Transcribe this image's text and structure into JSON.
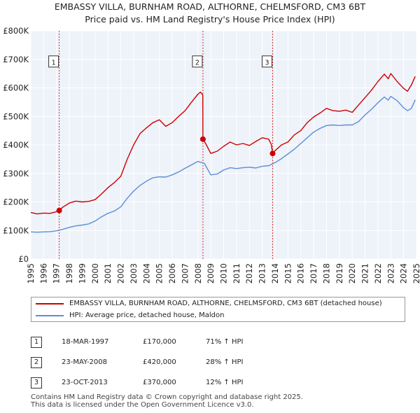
{
  "chart_data": {
    "type": "line",
    "title": "EMBASSY VILLA, BURNHAM ROAD, ALTHORNE, CHELMSFORD, CM3 6BT",
    "subtitle": "Price paid vs. HM Land Registry's House Price Index (HPI)",
    "xlabel": "",
    "ylabel": "",
    "xlim": [
      1995,
      2025
    ],
    "ylim": [
      0,
      800000
    ],
    "x_ticks": [
      1995,
      1996,
      1997,
      1998,
      1999,
      2000,
      2001,
      2002,
      2003,
      2004,
      2005,
      2006,
      2007,
      2008,
      2009,
      2010,
      2011,
      2012,
      2013,
      2014,
      2015,
      2016,
      2017,
      2018,
      2019,
      2020,
      2021,
      2022,
      2023,
      2024,
      2025
    ],
    "y_ticks": [
      {
        "value": 0,
        "label": "£0"
      },
      {
        "value": 100000,
        "label": "£100K"
      },
      {
        "value": 200000,
        "label": "£200K"
      },
      {
        "value": 300000,
        "label": "£300K"
      },
      {
        "value": 400000,
        "label": "£400K"
      },
      {
        "value": 500000,
        "label": "£500K"
      },
      {
        "value": 600000,
        "label": "£600K"
      },
      {
        "value": 700000,
        "label": "£700K"
      },
      {
        "value": 800000,
        "label": "£800K"
      }
    ],
    "grid": true,
    "series": [
      {
        "name": "EMBASSY VILLA, BURNHAM ROAD, ALTHORNE, CHELMSFORD, CM3 6BT (detached house)",
        "color": "#cc0000",
        "points": [
          [
            1995.0,
            163000
          ],
          [
            1995.5,
            158000
          ],
          [
            1996.0,
            161000
          ],
          [
            1996.5,
            160000
          ],
          [
            1997.0,
            166000
          ],
          [
            1997.21,
            170000
          ],
          [
            1997.5,
            182000
          ],
          [
            1998.0,
            196000
          ],
          [
            1998.5,
            203000
          ],
          [
            1999.0,
            200000
          ],
          [
            1999.5,
            202000
          ],
          [
            2000.0,
            208000
          ],
          [
            2000.5,
            228000
          ],
          [
            2001.0,
            250000
          ],
          [
            2001.5,
            268000
          ],
          [
            2002.0,
            290000
          ],
          [
            2002.5,
            350000
          ],
          [
            2003.0,
            400000
          ],
          [
            2003.5,
            440000
          ],
          [
            2004.0,
            460000
          ],
          [
            2004.5,
            478000
          ],
          [
            2005.0,
            488000
          ],
          [
            2005.5,
            465000
          ],
          [
            2006.0,
            478000
          ],
          [
            2006.5,
            500000
          ],
          [
            2007.0,
            520000
          ],
          [
            2007.5,
            550000
          ],
          [
            2008.0,
            578000
          ],
          [
            2008.2,
            585000
          ],
          [
            2008.38,
            575000
          ],
          [
            2008.39,
            420000
          ],
          [
            2008.6,
            405000
          ],
          [
            2009.0,
            370000
          ],
          [
            2009.5,
            378000
          ],
          [
            2010.0,
            395000
          ],
          [
            2010.5,
            410000
          ],
          [
            2011.0,
            400000
          ],
          [
            2011.5,
            405000
          ],
          [
            2012.0,
            398000
          ],
          [
            2012.5,
            412000
          ],
          [
            2013.0,
            425000
          ],
          [
            2013.5,
            420000
          ],
          [
            2013.7,
            402000
          ],
          [
            2013.81,
            370000
          ],
          [
            2014.0,
            380000
          ],
          [
            2014.5,
            400000
          ],
          [
            2015.0,
            410000
          ],
          [
            2015.5,
            435000
          ],
          [
            2016.0,
            450000
          ],
          [
            2016.5,
            478000
          ],
          [
            2017.0,
            498000
          ],
          [
            2017.5,
            512000
          ],
          [
            2018.0,
            528000
          ],
          [
            2018.5,
            520000
          ],
          [
            2019.0,
            518000
          ],
          [
            2019.5,
            522000
          ],
          [
            2020.0,
            514000
          ],
          [
            2020.5,
            540000
          ],
          [
            2021.0,
            566000
          ],
          [
            2021.5,
            592000
          ],
          [
            2022.0,
            622000
          ],
          [
            2022.5,
            648000
          ],
          [
            2022.8,
            632000
          ],
          [
            2023.0,
            650000
          ],
          [
            2023.5,
            622000
          ],
          [
            2024.0,
            598000
          ],
          [
            2024.3,
            588000
          ],
          [
            2024.6,
            610000
          ],
          [
            2024.9,
            640000
          ]
        ]
      },
      {
        "name": "HPI: Average price, detached house, Maldon",
        "color": "#5b8ed6",
        "points": [
          [
            1995.0,
            95000
          ],
          [
            1995.5,
            94000
          ],
          [
            1996.0,
            95000
          ],
          [
            1996.5,
            96000
          ],
          [
            1997.0,
            99000
          ],
          [
            1997.5,
            104000
          ],
          [
            1998.0,
            111000
          ],
          [
            1998.5,
            116000
          ],
          [
            1999.0,
            119000
          ],
          [
            1999.5,
            123000
          ],
          [
            2000.0,
            133000
          ],
          [
            2000.5,
            148000
          ],
          [
            2001.0,
            160000
          ],
          [
            2001.5,
            168000
          ],
          [
            2002.0,
            183000
          ],
          [
            2002.5,
            213000
          ],
          [
            2003.0,
            238000
          ],
          [
            2003.5,
            258000
          ],
          [
            2004.0,
            273000
          ],
          [
            2004.5,
            285000
          ],
          [
            2005.0,
            288000
          ],
          [
            2005.5,
            287000
          ],
          [
            2006.0,
            295000
          ],
          [
            2006.5,
            305000
          ],
          [
            2007.0,
            318000
          ],
          [
            2007.5,
            330000
          ],
          [
            2008.0,
            342000
          ],
          [
            2008.5,
            335000
          ],
          [
            2009.0,
            295000
          ],
          [
            2009.5,
            298000
          ],
          [
            2010.0,
            312000
          ],
          [
            2010.5,
            320000
          ],
          [
            2011.0,
            317000
          ],
          [
            2011.5,
            320000
          ],
          [
            2012.0,
            322000
          ],
          [
            2012.5,
            319000
          ],
          [
            2013.0,
            325000
          ],
          [
            2013.5,
            327000
          ],
          [
            2014.0,
            338000
          ],
          [
            2014.5,
            352000
          ],
          [
            2015.0,
            368000
          ],
          [
            2015.5,
            385000
          ],
          [
            2016.0,
            405000
          ],
          [
            2016.5,
            425000
          ],
          [
            2017.0,
            445000
          ],
          [
            2017.5,
            458000
          ],
          [
            2018.0,
            468000
          ],
          [
            2018.5,
            470000
          ],
          [
            2019.0,
            468000
          ],
          [
            2019.5,
            470000
          ],
          [
            2020.0,
            470000
          ],
          [
            2020.5,
            482000
          ],
          [
            2021.0,
            505000
          ],
          [
            2021.5,
            525000
          ],
          [
            2022.0,
            548000
          ],
          [
            2022.5,
            568000
          ],
          [
            2022.8,
            557000
          ],
          [
            2023.0,
            570000
          ],
          [
            2023.5,
            555000
          ],
          [
            2024.0,
            530000
          ],
          [
            2024.3,
            520000
          ],
          [
            2024.6,
            528000
          ],
          [
            2024.9,
            558000
          ]
        ]
      }
    ],
    "sales": [
      {
        "num": "1",
        "x": 1997.21,
        "value": 170000
      },
      {
        "num": "2",
        "x": 2008.39,
        "value": 420000
      },
      {
        "num": "3",
        "x": 2013.81,
        "value": 370000
      }
    ],
    "marker_box_value": 690000
  },
  "legend": {
    "property_label": "EMBASSY VILLA, BURNHAM ROAD, ALTHORNE, CHELMSFORD, CM3 6BT (detached house)",
    "hpi_label": "HPI: Average price, detached house, Maldon"
  },
  "sales_table": [
    {
      "num": "1",
      "date": "18-MAR-1997",
      "price": "£170,000",
      "hpi": "71% ↑ HPI"
    },
    {
      "num": "2",
      "date": "23-MAY-2008",
      "price": "£420,000",
      "hpi": "28% ↑ HPI"
    },
    {
      "num": "3",
      "date": "23-OCT-2013",
      "price": "£370,000",
      "hpi": "12% ↑ HPI"
    }
  ],
  "footer": {
    "line1": "Contains HM Land Registry data © Crown copyright and database right 2025.",
    "line2": "This data is licensed under the Open Government Licence v3.0."
  },
  "colors": {
    "property": "#cc0000",
    "hpi": "#5b8ed6",
    "plot_bg": "#eef2f9",
    "grid": "#ffffff",
    "sale_line": "#cc0000"
  }
}
